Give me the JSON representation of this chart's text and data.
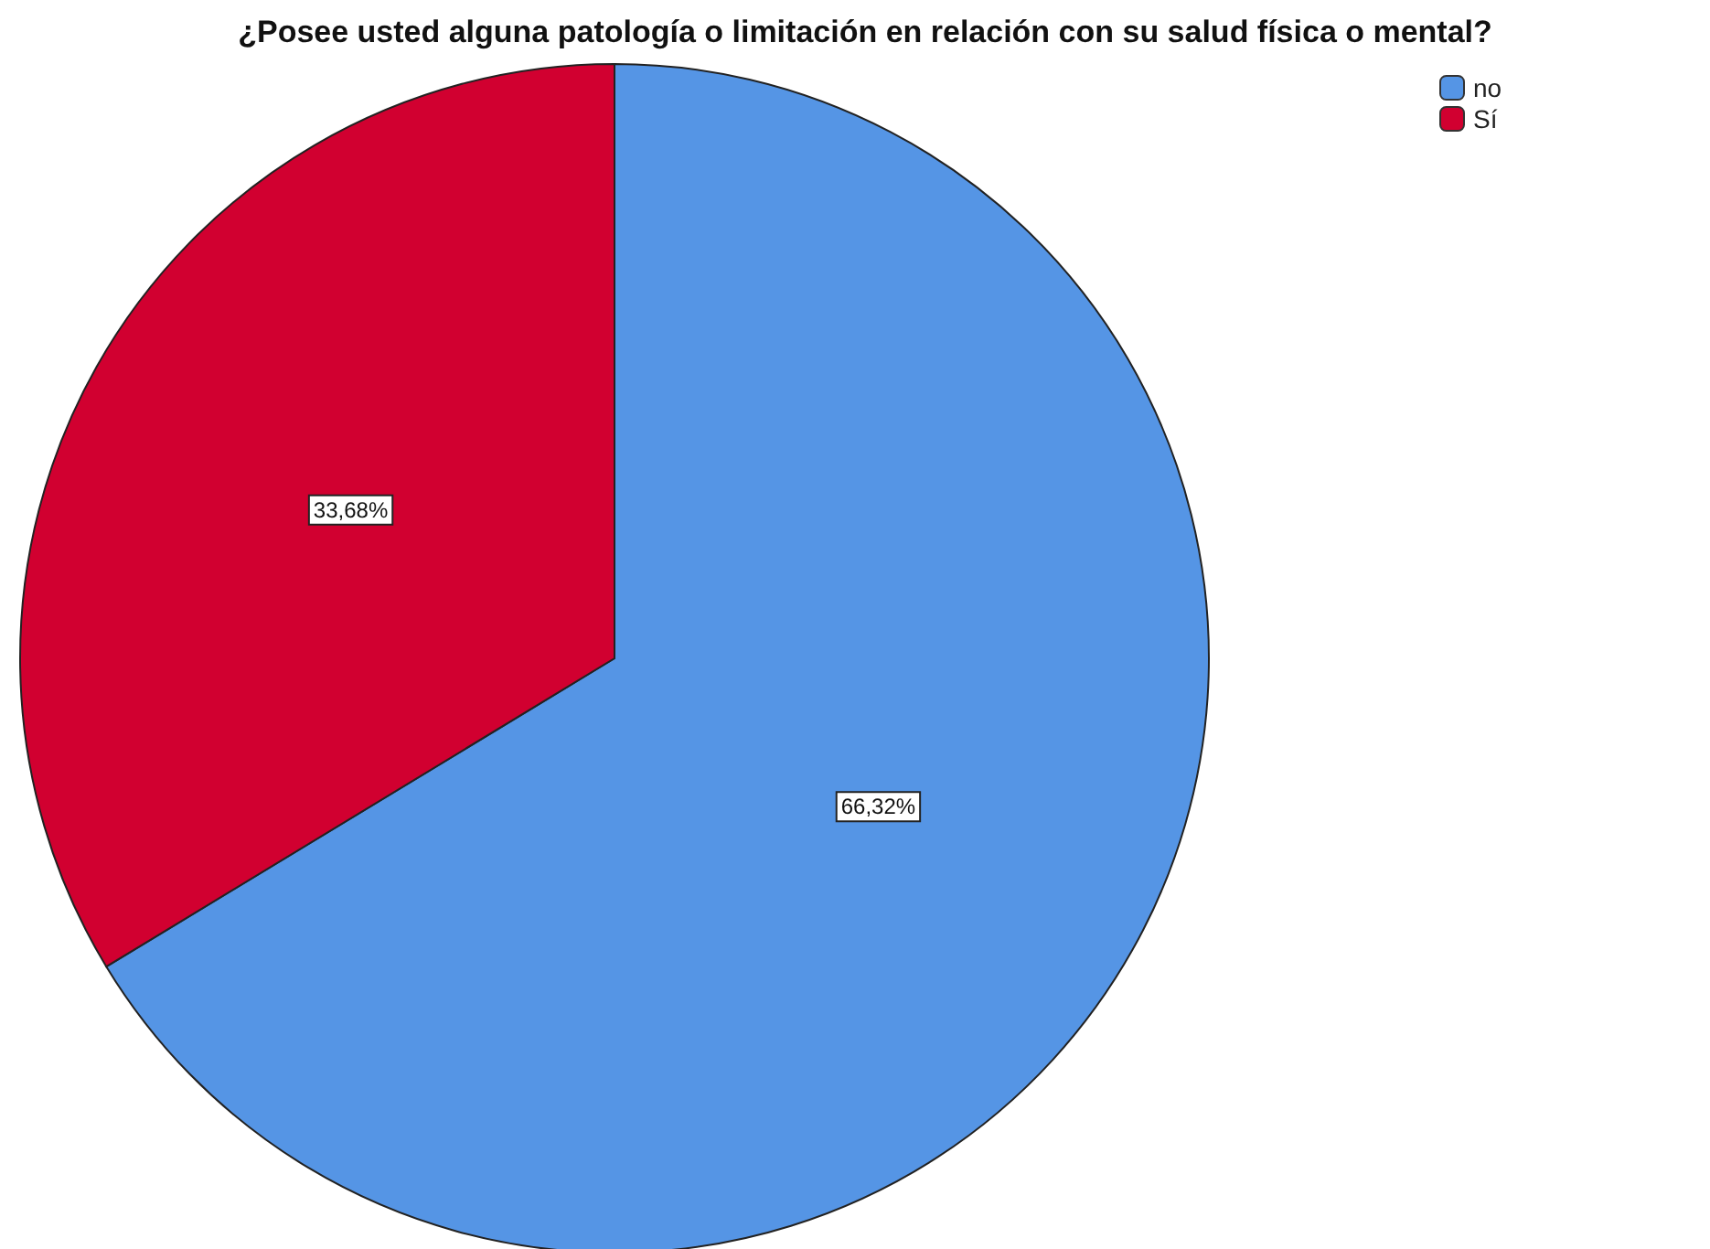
{
  "chart_data": {
    "type": "pie",
    "title": "¿Posee usted alguna patología o limitación en relación con su salud física o mental?",
    "categories": [
      "no",
      "Sí"
    ],
    "values": [
      66.32,
      33.68
    ],
    "colors": [
      "#5595e5",
      "#d10030"
    ],
    "value_labels": [
      "66,32%",
      "33,68%"
    ],
    "legend": "top right"
  }
}
